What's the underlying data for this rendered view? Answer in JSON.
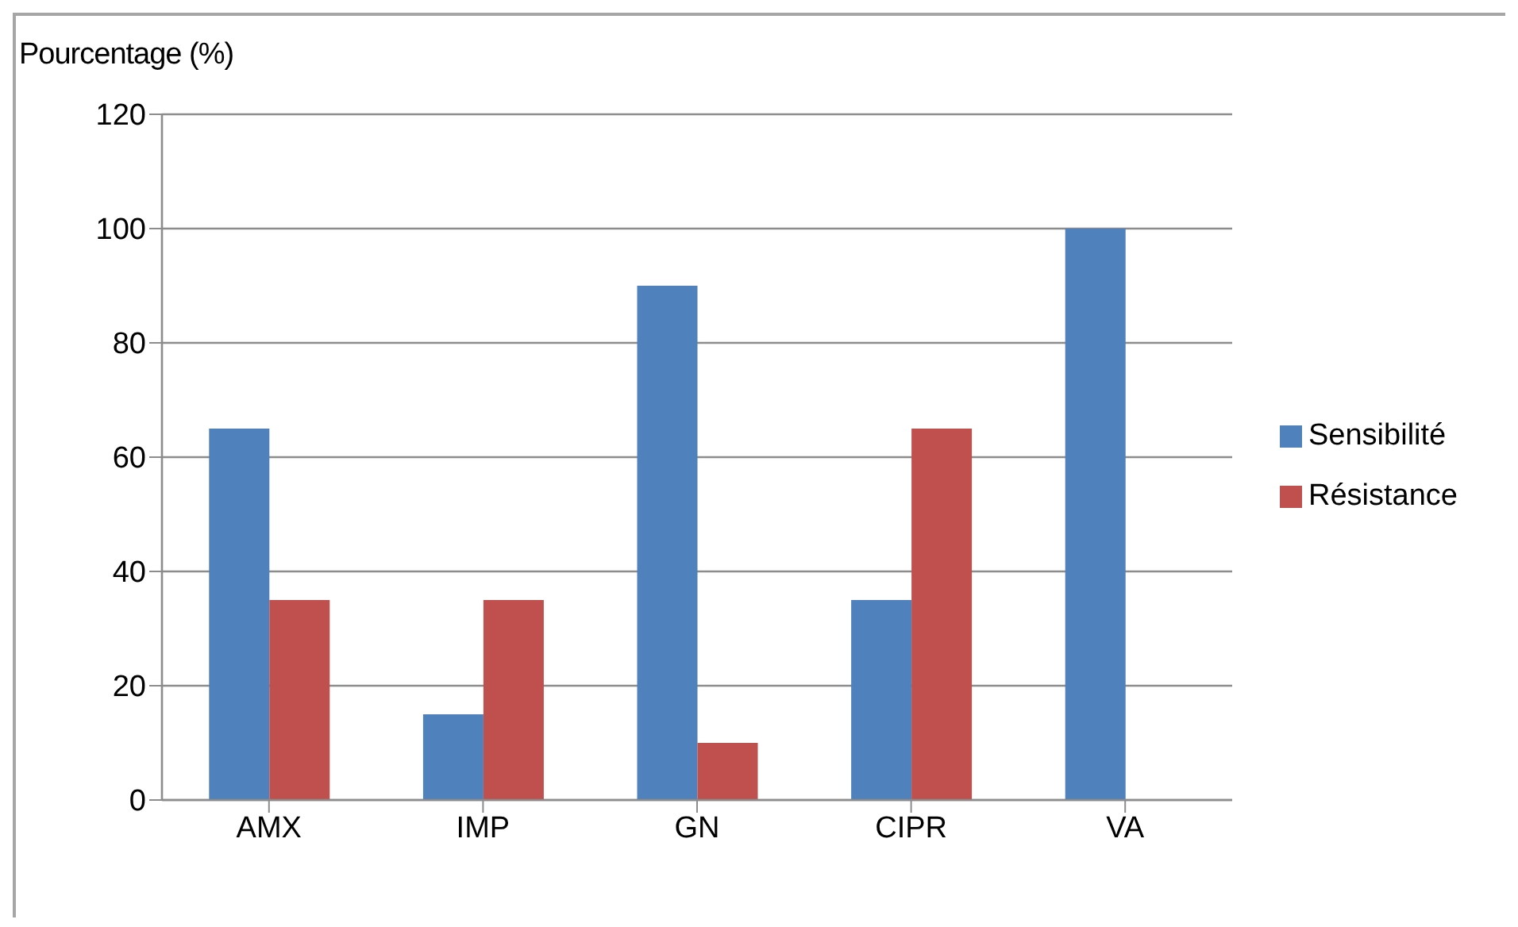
{
  "chart_data": {
    "type": "bar",
    "ylabel": "Pourcentage (%)",
    "categories": [
      "AMX",
      "IMP",
      "GN",
      "CIPR",
      "VA"
    ],
    "series": [
      {
        "name": "Sensibilité",
        "color": "#4f81bd",
        "values": [
          65,
          15,
          90,
          35,
          100
        ]
      },
      {
        "name": "Résistance",
        "color": "#c0504d",
        "values": [
          35,
          35,
          10,
          65,
          0
        ]
      }
    ],
    "ylim": [
      0,
      120
    ],
    "yticks": [
      0,
      20,
      40,
      60,
      80,
      100,
      120
    ],
    "grid": "y",
    "legend": "right"
  }
}
